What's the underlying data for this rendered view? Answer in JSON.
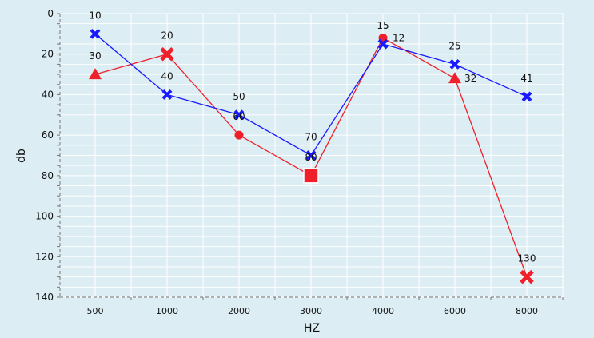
{
  "chart_data": {
    "type": "line",
    "title": "",
    "xlabel": "HZ",
    "ylabel": "db",
    "categories": [
      "500",
      "1000",
      "2000",
      "3000",
      "4000",
      "6000",
      "8000"
    ],
    "ylim": [
      0,
      140
    ],
    "y_inverted": true,
    "yticks": [
      0,
      20,
      40,
      60,
      80,
      100,
      120,
      140
    ],
    "grid": true,
    "series": [
      {
        "name": "blue",
        "color": "#1a1aff",
        "values": [
          10,
          40,
          50,
          70,
          15,
          25,
          41
        ],
        "markers": [
          "x",
          "x",
          "x",
          "x",
          "x",
          "x",
          "x"
        ]
      },
      {
        "name": "red",
        "color": "#f0202a",
        "values": [
          30,
          20,
          60,
          80,
          12,
          32,
          130
        ],
        "markers": [
          "triangle",
          "x",
          "circle",
          "square",
          "circle",
          "triangle",
          "x"
        ]
      }
    ]
  }
}
